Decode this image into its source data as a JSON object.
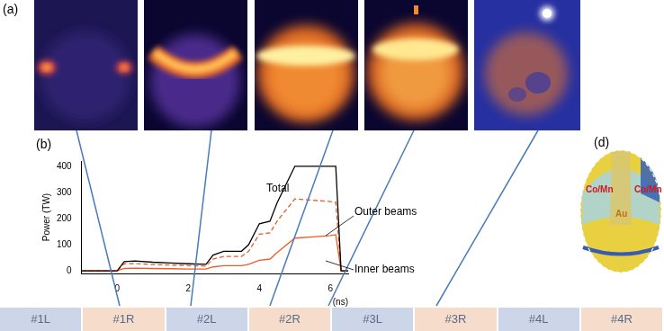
{
  "panel_labels": [
    "(a)",
    "(b)",
    "(d)"
  ],
  "chart_data": {
    "type": "line",
    "x_label": "(ns)",
    "y_label": "Power (TW)",
    "x": [
      -1,
      0,
      0.2,
      0.5,
      1.0,
      1.5,
      2.0,
      2.5,
      2.7,
      3.0,
      3.5,
      3.7,
      4.0,
      4.3,
      4.5,
      5.0,
      5.5,
      6.0,
      6.15,
      6.3,
      6.5
    ],
    "series": [
      {
        "name": "Total",
        "color": "#000000",
        "line_style": "solid",
        "values": [
          0,
          0,
          35,
          38,
          33,
          30,
          27,
          25,
          60,
          75,
          75,
          100,
          180,
          190,
          260,
          400,
          400,
          400,
          400,
          0,
          0
        ]
      },
      {
        "name": "Outer beams",
        "color": "#e0602e",
        "line_style": "dashed",
        "values": [
          0,
          0,
          27,
          28,
          24,
          22,
          20,
          18,
          45,
          55,
          55,
          75,
          140,
          145,
          190,
          275,
          270,
          265,
          262,
          0,
          0
        ]
      },
      {
        "name": "Inner beams",
        "color": "#f05a28",
        "line_style": "solid",
        "values": [
          0,
          0,
          9,
          10,
          9,
          8,
          7,
          7,
          15,
          20,
          20,
          25,
          40,
          45,
          70,
          125,
          130,
          135,
          138,
          0,
          0
        ]
      }
    ],
    "xlim": [
      -1,
      6.5
    ],
    "ylim": [
      -10,
      420
    ],
    "xticks": [
      0,
      2,
      4,
      6
    ],
    "yticks": [
      0,
      100,
      200,
      300,
      400
    ],
    "grid": false,
    "legend": false
  },
  "timeline": [
    "#1L",
    "#1R",
    "#2L",
    "#2R",
    "#3L",
    "#3R",
    "#4L",
    "#4R"
  ],
  "target_labels": [
    "Co/Mn",
    "Au",
    "Co/Mn"
  ]
}
